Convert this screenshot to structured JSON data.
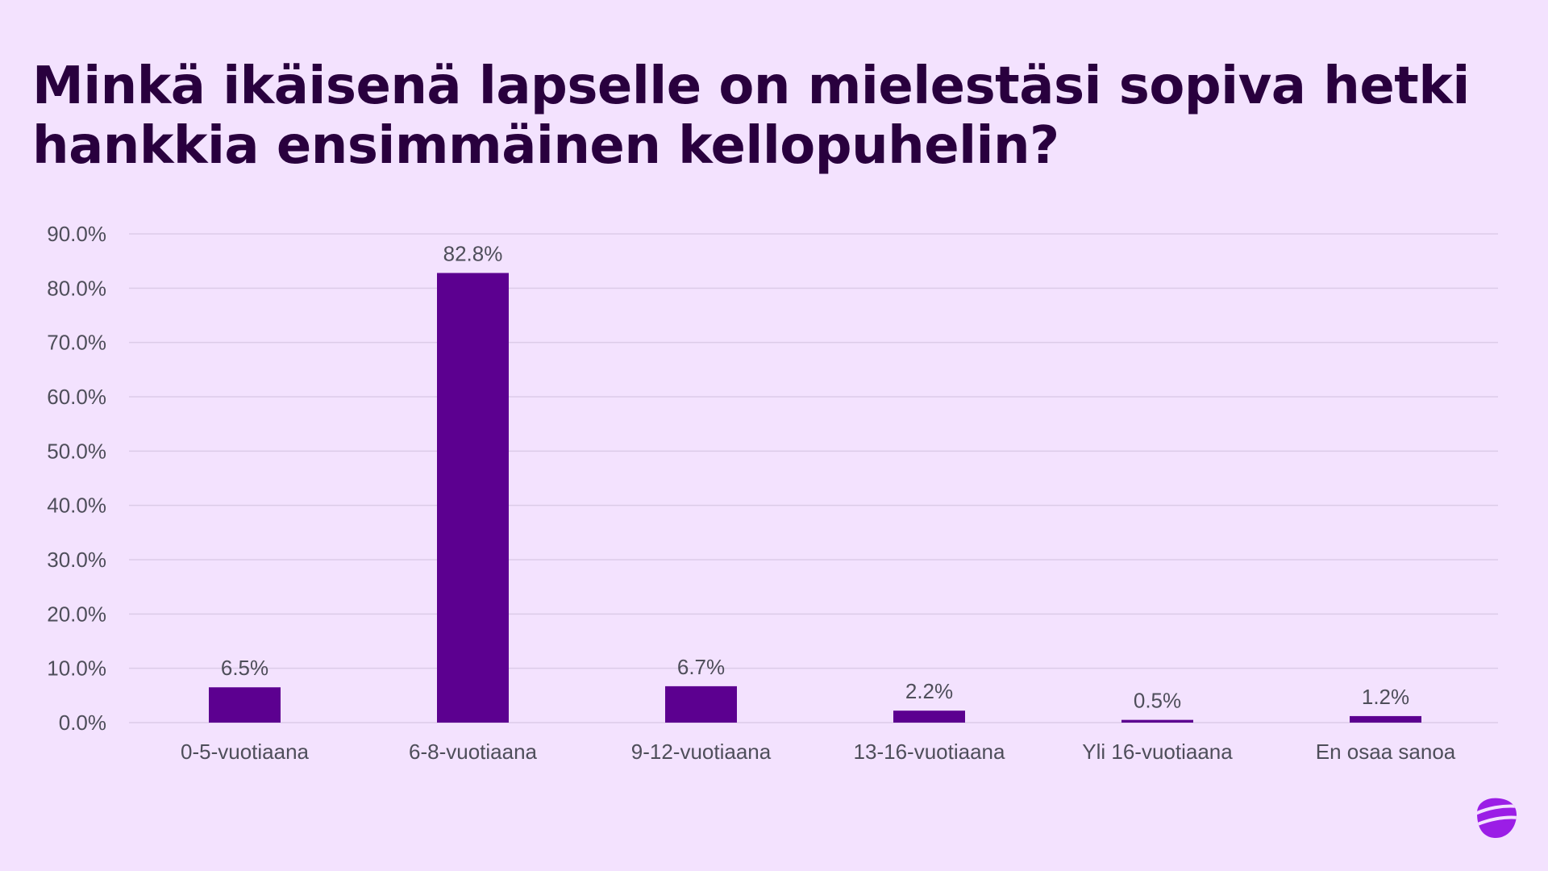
{
  "title_lines": [
    "Minkä ikäisenä lapselle on mielestäsi sopiva hetki",
    "hankkia ensimmäinen kellopuhelin?"
  ],
  "colors": {
    "background": "#f3e2fe",
    "bar": "#5c0090",
    "title": "#29003e",
    "axis_text": "#4e4e5a",
    "gridline": "#dccbe8",
    "logo": "#9b1ee6"
  },
  "logo_icon": "brand-pebble-logo-icon",
  "chart_data": {
    "type": "bar",
    "title": "Minkä ikäisenä lapselle on mielestäsi sopiva hetki hankkia ensimmäinen kellopuhelin?",
    "categories": [
      "0-5-vuotiaana",
      "6-8-vuotiaana",
      "9-12-vuotiaana",
      "13-16-vuotiaana",
      "Yli 16-vuotiaana",
      "En osaa sanoa"
    ],
    "values": [
      6.5,
      82.8,
      6.7,
      2.2,
      0.5,
      1.2
    ],
    "data_labels": [
      "6.5%",
      "82.8%",
      "6.7%",
      "2.2%",
      "0.5%",
      "1.2%"
    ],
    "yticks": [
      "0.0%",
      "10.0%",
      "20.0%",
      "30.0%",
      "40.0%",
      "50.0%",
      "60.0%",
      "70.0%",
      "80.0%",
      "90.0%"
    ],
    "ylim": [
      0,
      90
    ],
    "grid": true,
    "legend": "none"
  }
}
